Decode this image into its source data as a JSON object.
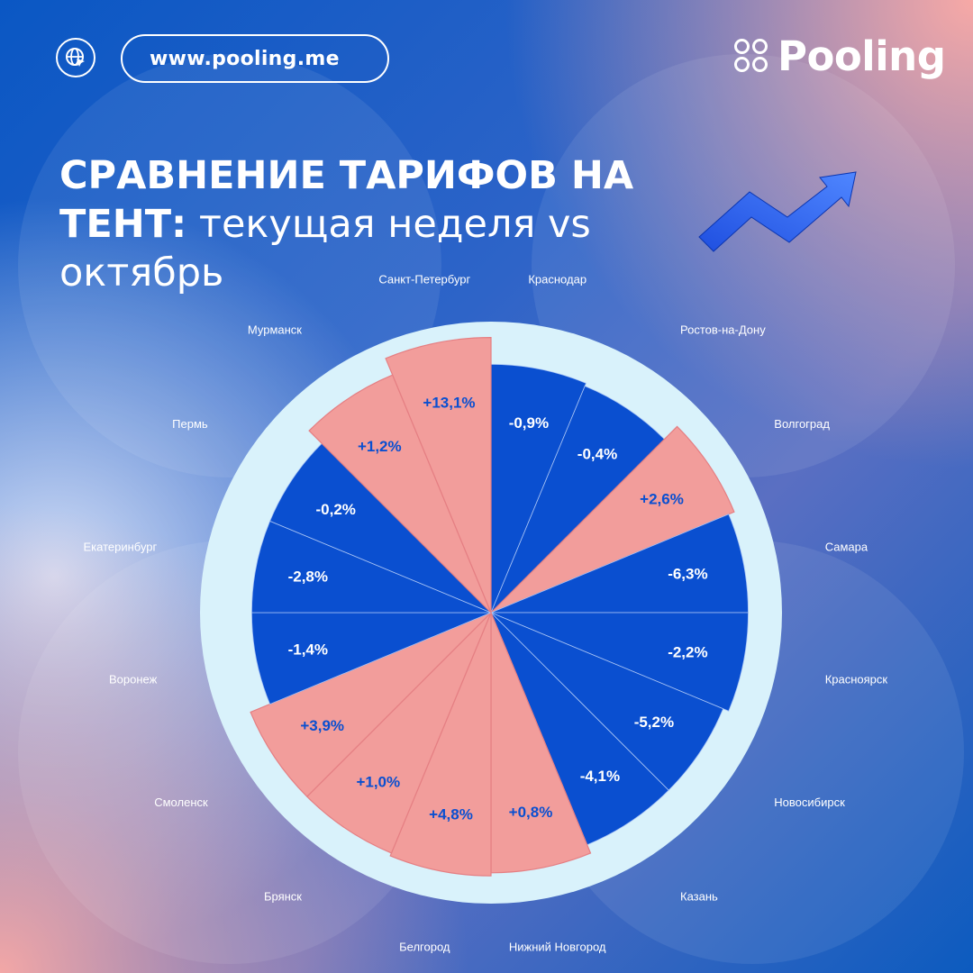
{
  "header": {
    "url": "www.pooling.me",
    "brand": "Pooling"
  },
  "title": {
    "line1": "СРАВНЕНИЕ ТАРИФОВ НА",
    "line2_bold": "ТЕНТ:",
    "line2_rest": " текущая неделя vs",
    "line3": "октябрь"
  },
  "colors": {
    "positive": "#f29d9b",
    "negative": "#0a4fd0",
    "positive_label": "#0a4fd0",
    "negative_label": "#ffffff",
    "disc": "#d9f2fb"
  },
  "icons": [
    "globe-cursor-icon",
    "logo-dots-icon",
    "trend-arrow-icon"
  ],
  "chart_data": {
    "type": "polar-bar",
    "unit": "%",
    "categories": [
      "Краснодар",
      "Ростов-на-Дону",
      "Волгоград",
      "Самара",
      "Красноярск",
      "Новосибирск",
      "Казань",
      "Нижний Новгород",
      "Белгород",
      "Брянск",
      "Смоленск",
      "Воронеж",
      "Екатеринбург",
      "Пермь",
      "Мурманск",
      "Санкт-Петербург"
    ],
    "values": [
      -0.9,
      -0.4,
      2.6,
      -6.3,
      -2.2,
      -5.2,
      -4.1,
      0.8,
      4.8,
      1.0,
      3.9,
      -1.4,
      -2.8,
      -0.2,
      1.2,
      13.1
    ],
    "labels": [
      "-0,9%",
      "-0,4%",
      "+2,6%",
      "-6,3%",
      "-2,2%",
      "-5,2%",
      "-4,1%",
      "+0,8%",
      "+4,8%",
      "+1,0%",
      "+3,9%",
      "-1,4%",
      "-2,8%",
      "-0,2%",
      "+1,2%",
      "+13,1%"
    ],
    "wedge_length": [
      0.83,
      0.82,
      0.88,
      0.86,
      0.86,
      0.84,
      0.84,
      0.87,
      0.88,
      0.87,
      0.87,
      0.8,
      0.8,
      0.8,
      0.86,
      0.92
    ]
  }
}
